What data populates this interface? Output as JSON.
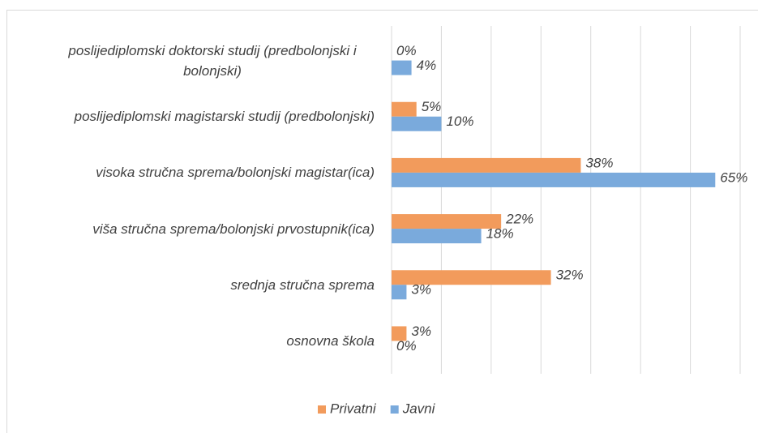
{
  "chart_data": {
    "type": "bar",
    "orientation": "horizontal",
    "categories": [
      "poslijediplomski doktorski studij (predbolonjski i bolonjski)",
      "poslijediplomski magistarski studij (predbolonjski)",
      "visoka stručna sprema/bolonjski magistar(ica)",
      "viša stručna sprema/bolonjski prvostupnik(ica)",
      "srednja stručna sprema",
      "osnovna škola"
    ],
    "series": [
      {
        "name": "Privatni",
        "color": "#f29b5c",
        "values": [
          0,
          5,
          38,
          22,
          32,
          3
        ],
        "value_labels": [
          "0%",
          "5%",
          "38%",
          "22%",
          "32%",
          "3%"
        ]
      },
      {
        "name": "Javni",
        "color": "#7aaadc",
        "values": [
          4,
          10,
          65,
          18,
          3,
          0
        ],
        "value_labels": [
          "4%",
          "10%",
          "65%",
          "18%",
          "3%",
          "0%"
        ]
      }
    ],
    "xlim": [
      0,
      70
    ],
    "xticks": [
      0,
      10,
      20,
      30,
      40,
      50,
      60,
      70
    ],
    "grid": true,
    "legend": "bottom"
  }
}
